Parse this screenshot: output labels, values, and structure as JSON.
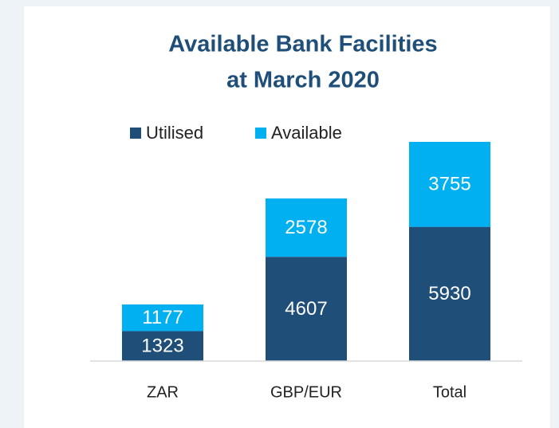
{
  "chart_data": {
    "type": "stacked_bar",
    "title": [
      "Available Bank Facilities",
      "at March 2020"
    ],
    "categories": [
      "ZAR",
      "GBP/EUR",
      "Total"
    ],
    "series": [
      {
        "name": "Utilised",
        "color": "#1f4e79",
        "values": [
          1323,
          4607,
          5930
        ]
      },
      {
        "name": "Available",
        "color": "#00b0f0",
        "values": [
          1177,
          2578,
          3755
        ]
      }
    ]
  }
}
